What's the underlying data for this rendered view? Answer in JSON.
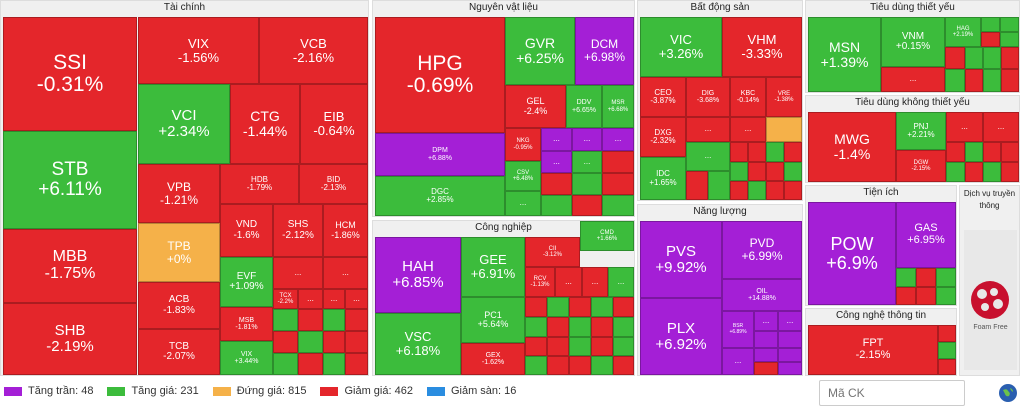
{
  "sectors": {
    "tai_chinh": "Tài chính",
    "nguyen_vat_lieu": "Nguyên vật liệu",
    "bat_dong_san": "Bất động sản",
    "tieu_dung_thiet_yeu": "Tiêu dùng thiết yếu",
    "tieu_dung_khong_thiet_yeu": "Tiêu dùng không thiết yếu",
    "cong_nghiep": "Công nghiệp",
    "nang_luong": "Năng lượng",
    "tien_ich": "Tiện ích",
    "dich_vu_truyen_thong": "Dịch vụ truyền thông",
    "cong_nghe_thong_tin": "Công nghệ thông tin"
  },
  "tiles": {
    "ssi": {
      "sym": "SSI",
      "pct": "-0.31%"
    },
    "stb": {
      "sym": "STB",
      "pct": "+6.11%"
    },
    "mbb": {
      "sym": "MBB",
      "pct": "-1.75%"
    },
    "shb": {
      "sym": "SHB",
      "pct": "-2.19%"
    },
    "vix": {
      "sym": "VIX",
      "pct": "-1.56%"
    },
    "vcb": {
      "sym": "VCB",
      "pct": "-2.16%"
    },
    "vci": {
      "sym": "VCI",
      "pct": "+2.34%"
    },
    "ctg": {
      "sym": "CTG",
      "pct": "-1.44%"
    },
    "eib": {
      "sym": "EIB",
      "pct": "-0.64%"
    },
    "vpb": {
      "sym": "VPB",
      "pct": "-1.21%"
    },
    "hdb": {
      "sym": "HDB",
      "pct": "-1.79%"
    },
    "bid": {
      "sym": "BID",
      "pct": "-2.13%"
    },
    "tpb": {
      "sym": "TPB",
      "pct": "+0%"
    },
    "vnd": {
      "sym": "VND",
      "pct": "-1.6%"
    },
    "shs": {
      "sym": "SHS",
      "pct": "-2.12%"
    },
    "hcm": {
      "sym": "HCM",
      "pct": "-1.86%"
    },
    "acb": {
      "sym": "ACB",
      "pct": "-1.83%"
    },
    "evf": {
      "sym": "EVF",
      "pct": "+1.09%"
    },
    "tcx": {
      "sym": "TCX",
      "pct": "-2.2%"
    },
    "msb": {
      "sym": "MSB",
      "pct": "-1.81%"
    },
    "tcb": {
      "sym": "TCB",
      "pct": "-2.07%"
    },
    "vix2": {
      "sym": "VIX",
      "pct": "+3.44%"
    },
    "hpg": {
      "sym": "HPG",
      "pct": "-0.69%"
    },
    "gvr": {
      "sym": "GVR",
      "pct": "+6.25%"
    },
    "dcm": {
      "sym": "DCM",
      "pct": "+6.98%"
    },
    "gel": {
      "sym": "GEL",
      "pct": "-2.4%"
    },
    "ddv": {
      "sym": "DDV",
      "pct": "+6.65%"
    },
    "msr": {
      "sym": "MSR",
      "pct": "+6.68%"
    },
    "dpm": {
      "sym": "DPM",
      "pct": "+6.88%"
    },
    "nkg": {
      "sym": "NKG",
      "pct": "-0.95%"
    },
    "csv": {
      "sym": "CSV",
      "pct": "+6.48%"
    },
    "dgc": {
      "sym": "DGC",
      "pct": "+2.85%"
    },
    "vic": {
      "sym": "VIC",
      "pct": "+3.26%"
    },
    "vhm": {
      "sym": "VHM",
      "pct": "-3.33%"
    },
    "ceo": {
      "sym": "CEO",
      "pct": "-3.87%"
    },
    "dig": {
      "sym": "DIG",
      "pct": "-3.68%"
    },
    "kbc": {
      "sym": "KBC",
      "pct": "-0.14%"
    },
    "vre": {
      "sym": "VRE",
      "pct": "-1.38%"
    },
    "dxg": {
      "sym": "DXG",
      "pct": "-2.32%"
    },
    "idc": {
      "sym": "IDC",
      "pct": "+1.65%"
    },
    "msn": {
      "sym": "MSN",
      "pct": "+1.39%"
    },
    "vnm": {
      "sym": "VNM",
      "pct": "+0.15%"
    },
    "hag": {
      "sym": "HAG",
      "pct": "+2.19%"
    },
    "mwg": {
      "sym": "MWG",
      "pct": "-1.4%"
    },
    "pnj": {
      "sym": "PNJ",
      "pct": "+2.21%"
    },
    "dgw": {
      "sym": "DGW",
      "pct": "-2.15%"
    },
    "hah": {
      "sym": "HAH",
      "pct": "+6.85%"
    },
    "gee": {
      "sym": "GEE",
      "pct": "+6.91%"
    },
    "cii": {
      "sym": "CII",
      "pct": "-3.12%"
    },
    "cmd": {
      "sym": "CMD",
      "pct": "+1.66%"
    },
    "vsc": {
      "sym": "VSC",
      "pct": "+6.18%"
    },
    "pc1": {
      "sym": "PC1",
      "pct": "+5.64%"
    },
    "rcv": {
      "sym": "RCV",
      "pct": "-1.13%"
    },
    "gex": {
      "sym": "GEX",
      "pct": "-1.62%"
    },
    "pvs": {
      "sym": "PVS",
      "pct": "+9.92%"
    },
    "pvd": {
      "sym": "PVD",
      "pct": "+6.99%"
    },
    "oil": {
      "sym": "OIL",
      "pct": "+14.88%"
    },
    "plx": {
      "sym": "PLX",
      "pct": "+6.92%"
    },
    "bsr": {
      "sym": "BSR",
      "pct": "+6.89%"
    },
    "pow": {
      "sym": "POW",
      "pct": "+6.9%"
    },
    "gas": {
      "sym": "GAS",
      "pct": "+6.95%"
    },
    "fpt": {
      "sym": "FPT",
      "pct": "-2.15%"
    }
  },
  "dots": "...",
  "legend": [
    {
      "label": "Tăng trần: 48",
      "color": "#a41fd6"
    },
    {
      "label": "Tăng giá: 231",
      "color": "#3cbc3c"
    },
    {
      "label": "Đứng giá: 815",
      "color": "#f5b149"
    },
    {
      "label": "Giảm giá: 462",
      "color": "#e4262b"
    },
    {
      "label": "Giảm sàn: 16",
      "color": "#2a8de0"
    }
  ],
  "search": {
    "placeholder": "Mã CK"
  },
  "logo_text": "Foam Free",
  "icons": {
    "globe": "globe-icon"
  }
}
